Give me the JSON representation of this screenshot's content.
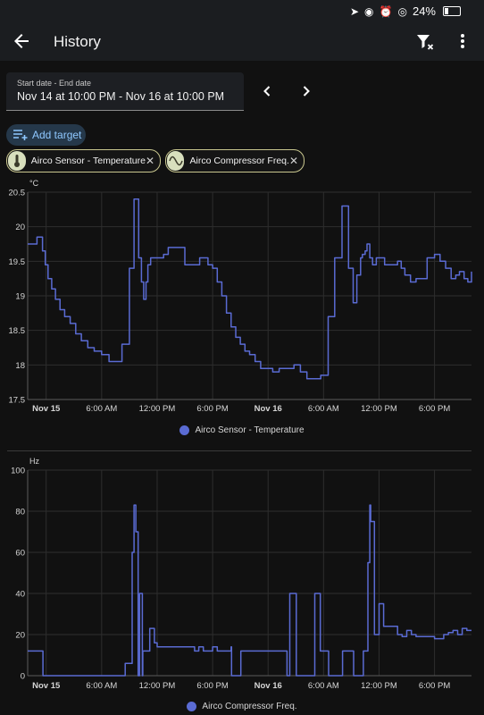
{
  "status_bar": {
    "battery": "24%"
  },
  "app_bar": {
    "title": "History"
  },
  "date_range": {
    "label": "Start date - End date",
    "value": "Nov 14 at 10:00 PM - Nov 16 at 10:00 PM"
  },
  "add_target": {
    "label": "Add target"
  },
  "targets": [
    {
      "label": "Airco Sensor - Temperature",
      "icon": "thermometer-icon"
    },
    {
      "label": "Airco Compressor Freq.",
      "icon": "sine-wave-icon"
    }
  ],
  "colors": {
    "series": "#5a6bd3",
    "accent": "#8fc8ff",
    "chip_border": "#c9c78f"
  },
  "chart_data": [
    {
      "type": "line",
      "ylabel": "°C",
      "ylim": [
        17.5,
        20.5
      ],
      "yticks": [
        "20.5",
        "20",
        "19.5",
        "19",
        "18.5",
        "18",
        "17.5"
      ],
      "xlim": [
        0,
        48
      ],
      "xticks": [
        {
          "h": 2,
          "label": "Nov 15",
          "bold": true
        },
        {
          "h": 8,
          "label": "6:00 AM"
        },
        {
          "h": 14,
          "label": "12:00 PM"
        },
        {
          "h": 20,
          "label": "6:00 PM"
        },
        {
          "h": 26,
          "label": "Nov 16",
          "bold": true
        },
        {
          "h": 32,
          "label": "6:00 AM"
        },
        {
          "h": 38,
          "label": "12:00 PM"
        },
        {
          "h": 44,
          "label": "6:00 PM"
        }
      ],
      "legend": "bottom",
      "series": [
        {
          "name": "Airco Sensor - Temperature",
          "x": [
            0,
            0.7,
            1,
            1.3,
            1.6,
            1.9,
            2.2,
            2.6,
            3,
            3.5,
            4,
            4.6,
            5.2,
            5.8,
            6.5,
            7.2,
            8,
            8.8,
            9.5,
            10.2,
            11,
            11.5,
            12,
            12.3,
            12.55,
            12.8,
            13,
            13.3,
            13.7,
            14,
            14.3,
            14.7,
            15.2,
            16,
            17,
            18,
            18.6,
            19,
            19.5,
            20,
            20.5,
            21,
            21.5,
            22,
            22.5,
            23,
            23.5,
            24,
            24.6,
            25.2,
            25.8,
            26.5,
            27.2,
            28,
            28.8,
            29.5,
            30.2,
            31,
            31.7,
            32.5,
            33.2,
            34,
            34.7,
            35.2,
            35.6,
            36,
            36.2,
            36.5,
            36.7,
            37,
            37.3,
            37.7,
            38,
            38.6,
            39.2,
            39.6,
            40,
            40.4,
            40.8,
            41.4,
            42,
            42.6,
            43.2,
            44,
            44.6,
            45.2,
            45.8,
            46.3,
            46.7,
            47.2,
            47.6,
            48
          ],
          "values": [
            19.75,
            19.75,
            19.85,
            19.85,
            19.65,
            19.45,
            19.25,
            19.1,
            18.95,
            18.8,
            18.7,
            18.6,
            18.45,
            18.35,
            18.25,
            18.2,
            18.15,
            18.05,
            18.05,
            18.3,
            19.4,
            20.4,
            19.55,
            19.2,
            18.95,
            19.2,
            19.45,
            19.55,
            19.55,
            19.55,
            19.55,
            19.6,
            19.7,
            19.7,
            19.45,
            19.45,
            19.55,
            19.55,
            19.45,
            19.4,
            19.2,
            19.0,
            18.75,
            18.55,
            18.4,
            18.3,
            18.2,
            18.15,
            18.05,
            17.95,
            17.95,
            17.9,
            17.95,
            17.95,
            18.0,
            17.9,
            17.8,
            17.8,
            17.85,
            18.7,
            19.55,
            20.3,
            19.4,
            18.9,
            19.3,
            19.55,
            19.6,
            19.65,
            19.75,
            19.55,
            19.45,
            19.55,
            19.55,
            19.45,
            19.45,
            19.45,
            19.5,
            19.4,
            19.3,
            19.2,
            19.25,
            19.25,
            19.55,
            19.6,
            19.5,
            19.4,
            19.25,
            19.3,
            19.35,
            19.25,
            19.2,
            19.35
          ]
        }
      ]
    },
    {
      "type": "line",
      "ylabel": "Hz",
      "ylim": [
        0,
        100
      ],
      "yticks": [
        "100",
        "80",
        "60",
        "40",
        "20",
        "0"
      ],
      "xlim": [
        0,
        48
      ],
      "xticks": [
        {
          "h": 2,
          "label": "Nov 15",
          "bold": true
        },
        {
          "h": 8,
          "label": "6:00 AM"
        },
        {
          "h": 14,
          "label": "12:00 PM"
        },
        {
          "h": 20,
          "label": "6:00 PM"
        },
        {
          "h": 26,
          "label": "Nov 16",
          "bold": true
        },
        {
          "h": 32,
          "label": "6:00 AM"
        },
        {
          "h": 38,
          "label": "12:00 PM"
        },
        {
          "h": 44,
          "label": "6:00 PM"
        }
      ],
      "legend": "bottom",
      "series": [
        {
          "name": "Airco Compressor Freq.",
          "x": [
            0,
            1.6,
            1.65,
            10.5,
            10.55,
            11.3,
            11.5,
            11.7,
            11.95,
            12.1,
            12.4,
            12.45,
            12.9,
            13.2,
            13.7,
            14,
            16,
            18,
            18.05,
            18.5,
            19,
            20,
            20.5,
            22,
            22.05,
            23,
            23.05,
            28,
            28.05,
            28.3,
            28.35,
            29,
            29.05,
            31,
            31.05,
            31.6,
            31.65,
            32.5,
            32.55,
            34,
            34.05,
            35.2,
            35.25,
            36,
            36.3,
            36.5,
            36.8,
            37,
            37.1,
            37.5,
            38,
            38.5,
            39.5,
            40,
            40.5,
            41,
            41.5,
            42,
            43,
            44,
            45,
            45.5,
            46,
            46.5,
            47,
            47.5,
            48
          ],
          "values": [
            12,
            12,
            0,
            0,
            6,
            60,
            83,
            70,
            0,
            40,
            0,
            12,
            12,
            23,
            16,
            14,
            14,
            14,
            12,
            14,
            12,
            14,
            12,
            14,
            0,
            0,
            12,
            12,
            0,
            0,
            40,
            40,
            0,
            0,
            40,
            40,
            12,
            12,
            0,
            0,
            12,
            12,
            0,
            0,
            12,
            12,
            55,
            83,
            75,
            20,
            35,
            24,
            24,
            20,
            19,
            22,
            20,
            19,
            19,
            18,
            20,
            21,
            22,
            20,
            23,
            22,
            22
          ]
        }
      ]
    }
  ]
}
